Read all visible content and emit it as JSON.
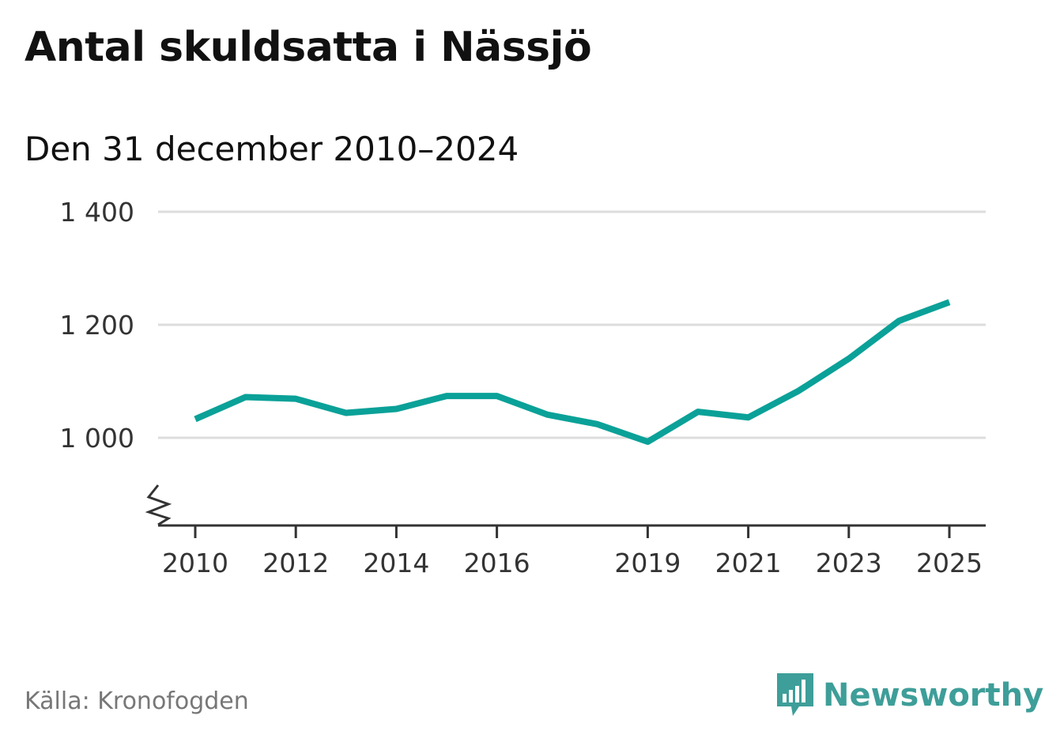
{
  "title": "Antal skuldsatta i Nässjö",
  "subtitle": "Den 31 december 2010–2024",
  "source": "Källa: Kronofogden",
  "brand": {
    "name": "Newsworthy",
    "icon": "newsworthy-logo-icon",
    "color": "#3e9e99"
  },
  "colors": {
    "line": "#0aa198",
    "grid": "#dddddd",
    "axis": "#333333"
  },
  "chart_data": {
    "type": "line",
    "title": "Antal skuldsatta i Nässjö",
    "subtitle": "Den 31 december 2010–2024",
    "xlabel": "",
    "ylabel": "",
    "x": [
      2010,
      2011,
      2012,
      2013,
      2014,
      2015,
      2016,
      2017,
      2018,
      2019,
      2020,
      2021,
      2022,
      2023,
      2024,
      2025
    ],
    "series": [
      {
        "name": "Antal skuldsatta",
        "values": [
          1033,
          1072,
          1069,
          1044,
          1051,
          1074,
          1074,
          1041,
          1024,
          993,
          1046,
          1036,
          1083,
          1140,
          1207,
          1240
        ]
      }
    ],
    "x_ticks": [
      2010,
      2012,
      2014,
      2016,
      2019,
      2021,
      2023,
      2025
    ],
    "x_tick_labels": [
      "2010",
      "2012",
      "2014",
      "2016",
      "2019",
      "2021",
      "2023",
      "2025"
    ],
    "y_ticks": [
      1000,
      1200,
      1400
    ],
    "y_tick_labels": [
      "1 000",
      "1 200",
      "1 400"
    ],
    "ylim": [
      1000,
      1400
    ],
    "y_axis_break": true,
    "grid": true
  }
}
